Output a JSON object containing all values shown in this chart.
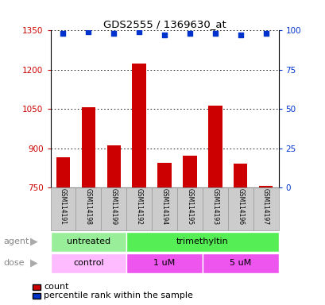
{
  "title": "GDS2555 / 1369630_at",
  "samples": [
    "GSM114191",
    "GSM114198",
    "GSM114199",
    "GSM114192",
    "GSM114194",
    "GSM114195",
    "GSM114193",
    "GSM114196",
    "GSM114197"
  ],
  "counts": [
    865,
    1057,
    912,
    1225,
    845,
    872,
    1062,
    840,
    758
  ],
  "percentile_ranks": [
    98,
    99,
    98,
    99,
    97,
    98,
    98,
    97,
    98
  ],
  "ylim_left": [
    750,
    1350
  ],
  "ylim_right": [
    0,
    100
  ],
  "yticks_left": [
    750,
    900,
    1050,
    1200,
    1350
  ],
  "yticks_right": [
    0,
    25,
    50,
    75,
    100
  ],
  "bar_color": "#cc0000",
  "dot_color": "#0033cc",
  "agent_groups": [
    {
      "label": "untreated",
      "start": 0,
      "end": 3,
      "color": "#99ee99"
    },
    {
      "label": "trimethyltin",
      "start": 3,
      "end": 9,
      "color": "#55ee55"
    }
  ],
  "dose_groups": [
    {
      "label": "control",
      "start": 0,
      "end": 3,
      "color": "#ffbbff"
    },
    {
      "label": "1 uM",
      "start": 3,
      "end": 6,
      "color": "#ee55ee"
    },
    {
      "label": "5 uM",
      "start": 6,
      "end": 9,
      "color": "#ee55ee"
    }
  ],
  "legend_count_label": "count",
  "legend_pct_label": "percentile rank within the sample",
  "agent_label": "agent",
  "dose_label": "dose",
  "background_color": "#ffffff",
  "tick_label_color_left": "#cc0000",
  "tick_label_color_right": "#0033cc",
  "sample_col_bg": "#cccccc",
  "sample_col_border": "#999999",
  "sample_col_bg_alt": "#dddddd"
}
